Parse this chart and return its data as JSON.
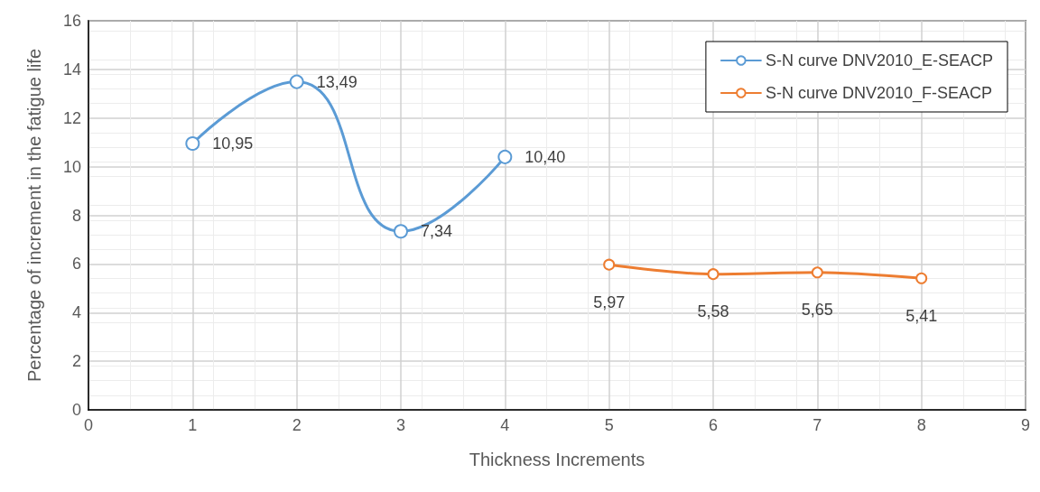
{
  "chart_data": {
    "type": "line",
    "xlabel": "Thickness Increments",
    "ylabel": "Percentage of increment in the fatigue life",
    "series": [
      {
        "name": "S-N curve DNV2010_E-SEACP",
        "color": "#5b9bd5",
        "x": [
          1,
          2,
          3,
          4
        ],
        "values": [
          10.95,
          13.49,
          7.34,
          10.4
        ],
        "value_labels": [
          "10,95",
          "13,49",
          "7,34",
          "10,40"
        ]
      },
      {
        "name": "S-N curve DNV2010_F-SEACP",
        "color": "#ed7d31",
        "x": [
          5,
          6,
          7,
          8
        ],
        "values": [
          5.97,
          5.58,
          5.65,
          5.41
        ],
        "value_labels": [
          "5,97",
          "5,58",
          "5,65",
          "5,41"
        ]
      }
    ],
    "xlim": [
      0,
      9
    ],
    "xticks": [
      0,
      1,
      2,
      3,
      4,
      5,
      6,
      7,
      8,
      9
    ],
    "ylim": [
      0,
      16
    ],
    "yticks": [
      0,
      2,
      4,
      6,
      8,
      10,
      12,
      14,
      16
    ],
    "grid": true,
    "legend": "top right",
    "marker": "circle"
  }
}
